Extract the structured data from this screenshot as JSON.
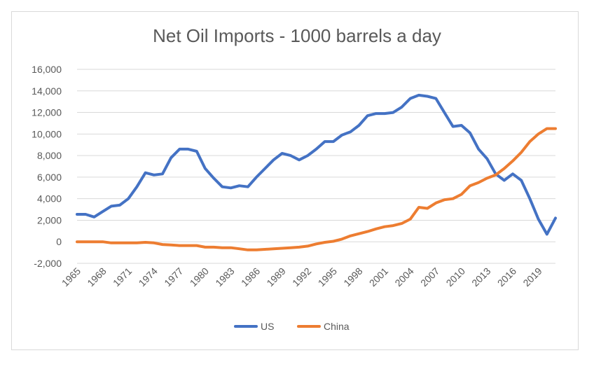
{
  "chart_data": {
    "type": "line",
    "title": "Net Oil Imports - 1000 barrels a day",
    "xlabel": "",
    "ylabel": "",
    "ylim": [
      -2000,
      16000
    ],
    "yticks": [
      -2000,
      0,
      2000,
      4000,
      6000,
      8000,
      10000,
      12000,
      14000,
      16000
    ],
    "ytick_labels": [
      "-2,000",
      "0",
      "2,000",
      "4,000",
      "6,000",
      "8,000",
      "10,000",
      "12,000",
      "14,000",
      "16,000"
    ],
    "xtick_labels": [
      "1965",
      "1968",
      "1971",
      "1974",
      "1977",
      "1980",
      "1983",
      "1986",
      "1989",
      "1992",
      "1995",
      "1998",
      "2001",
      "2004",
      "2007",
      "2010",
      "2013",
      "2016",
      "2019"
    ],
    "x": [
      1965,
      1966,
      1967,
      1968,
      1969,
      1970,
      1971,
      1972,
      1973,
      1974,
      1975,
      1976,
      1977,
      1978,
      1979,
      1980,
      1981,
      1982,
      1983,
      1984,
      1985,
      1986,
      1987,
      1988,
      1989,
      1990,
      1991,
      1992,
      1993,
      1994,
      1995,
      1996,
      1997,
      1998,
      1999,
      2000,
      2001,
      2002,
      2003,
      2004,
      2005,
      2006,
      2007,
      2008,
      2009,
      2010,
      2011,
      2012,
      2013,
      2014,
      2015,
      2016,
      2017,
      2018,
      2019,
      2020,
      2021
    ],
    "series": [
      {
        "name": "US",
        "color": "#4472c4",
        "values": [
          2550,
          2550,
          2300,
          2800,
          3300,
          3400,
          4000,
          5100,
          6400,
          6200,
          6300,
          7800,
          8600,
          8600,
          8400,
          6800,
          5900,
          5100,
          5000,
          5200,
          5100,
          6000,
          6800,
          7600,
          8200,
          8000,
          7600,
          8000,
          8600,
          9300,
          9300,
          9900,
          10200,
          10800,
          11700,
          11900,
          11900,
          12000,
          12500,
          13300,
          13600,
          13500,
          13300,
          12000,
          10700,
          10800,
          10100,
          8600,
          7700,
          6300,
          5700,
          6300,
          5700,
          4000,
          2100,
          700,
          2200
        ]
      },
      {
        "name": "China",
        "color": "#ed7d31",
        "values": [
          0,
          0,
          0,
          0,
          -100,
          -100,
          -100,
          -100,
          -50,
          -100,
          -250,
          -300,
          -350,
          -350,
          -350,
          -500,
          -500,
          -550,
          -550,
          -650,
          -750,
          -750,
          -700,
          -650,
          -600,
          -550,
          -500,
          -400,
          -200,
          -50,
          50,
          250,
          550,
          750,
          950,
          1200,
          1400,
          1500,
          1700,
          2100,
          3200,
          3100,
          3600,
          3900,
          4000,
          4400,
          5200,
          5500,
          5900,
          6200,
          6800,
          7500,
          8300,
          9300,
          10000,
          10500,
          10500
        ]
      }
    ],
    "grid": true,
    "legend_position": "bottom"
  }
}
